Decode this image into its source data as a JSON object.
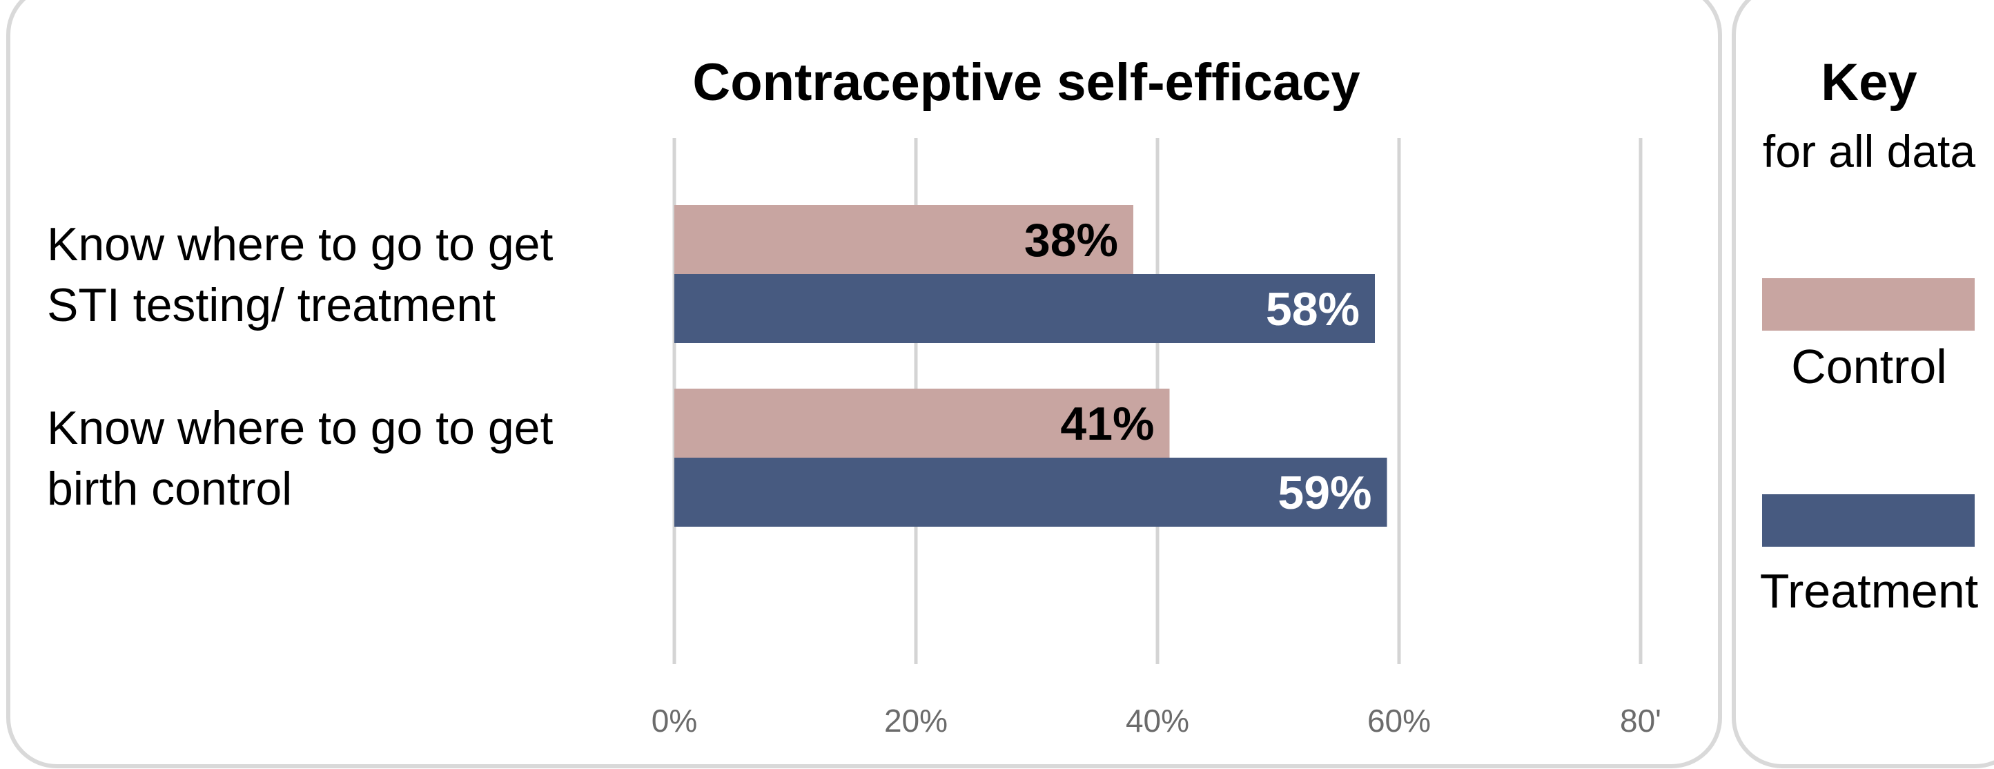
{
  "chart_data": {
    "type": "bar",
    "orientation": "horizontal",
    "title": "Contraceptive self-efficacy",
    "categories": [
      [
        "Know where to go to get",
        "STI testing/ treatment"
      ],
      [
        "Know where to go to get",
        "birth control"
      ]
    ],
    "series": [
      {
        "name": "Control",
        "color": "#c8a5a1",
        "label_color": "#000000",
        "values": [
          38,
          41
        ],
        "labels": [
          "38%",
          "41%"
        ]
      },
      {
        "name": "Treatment",
        "color": "#475a80",
        "label_color": "#ffffff",
        "values": [
          58,
          59
        ],
        "labels": [
          "58%",
          "59%"
        ]
      }
    ],
    "xlim": [
      0,
      80
    ],
    "x_ticks": [
      0,
      20,
      40,
      60,
      80
    ],
    "x_tick_labels": [
      "0%",
      "20%",
      "40%",
      "60%",
      "80'"
    ],
    "grid": true,
    "legend": {
      "placement": "right",
      "title": "Key",
      "subtitle": "for all data",
      "items": [
        "Control",
        "Treatment"
      ]
    }
  }
}
